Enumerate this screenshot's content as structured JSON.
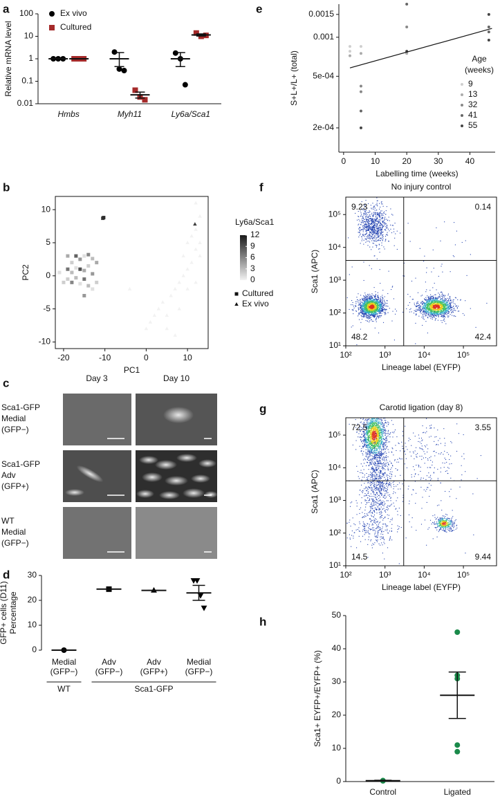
{
  "chart_data": [
    {
      "panel": "a",
      "type": "dot_strip",
      "ylabel": [
        "Relative mRNA level"
      ],
      "log_y": true,
      "ylim": [
        0.01,
        100
      ],
      "yticks": [
        0.01,
        0.1,
        1,
        10,
        100
      ],
      "categories": [
        "Hmbs",
        "Myh11",
        "Ly6a/Sca1"
      ],
      "legend": true,
      "series": [
        {
          "name": "Ex vivo",
          "color": "#000000",
          "marker": "circle",
          "values": [
            [
              1,
              1,
              1
            ],
            [
              2,
              0.35,
              0.3
            ],
            [
              1.8,
              1,
              0.07
            ]
          ],
          "mean": [
            1,
            1,
            1
          ],
          "sem": [
            [
              1,
              1
            ],
            [
              0.45,
              1.9
            ],
            [
              0.45,
              1.9
            ]
          ]
        },
        {
          "name": "Cultured",
          "color": "#a52a2a",
          "marker": "square",
          "values": [
            [
              1,
              1,
              1
            ],
            [
              0.04,
              0.02,
              0.015
            ],
            [
              14,
              10,
              11
            ]
          ],
          "mean": [
            1,
            0.025,
            11.5
          ],
          "sem": [
            [
              1,
              1
            ],
            [
              0.018,
              0.033
            ],
            [
              10.3,
              12.8
            ]
          ]
        }
      ]
    },
    {
      "panel": "b",
      "type": "scatter",
      "xlabel": "PC1",
      "ylabel": [
        "PC2"
      ],
      "xlim": [
        -22,
        15
      ],
      "xticks": [
        -20,
        -10,
        0,
        10
      ],
      "ylim": [
        -11,
        12
      ],
      "yticks": [
        -10,
        -5,
        0,
        5,
        10
      ],
      "colorbar": {
        "title": "Ly6a/Sca1",
        "lim": [
          0,
          12
        ],
        "ticks": [
          0,
          3,
          6,
          9,
          12
        ],
        "colors": [
          "#f2f2f2",
          "#1a1a1a"
        ]
      },
      "series": [
        {
          "name": "Cultured",
          "marker": "square",
          "points": [
            [
              -19,
              3,
              4
            ],
            [
              -18,
              2,
              2
            ],
            [
              -17,
              3,
              8
            ],
            [
              -16,
              2.5,
              5
            ],
            [
              -15,
              3,
              1
            ],
            [
              -14,
              3.2,
              6
            ],
            [
              -13,
              2.6,
              3
            ],
            [
              -19,
              1,
              7
            ],
            [
              -18,
              0.5,
              3
            ],
            [
              -17,
              1.2,
              1
            ],
            [
              -16,
              1,
              9
            ],
            [
              -15,
              0.8,
              4
            ],
            [
              -14,
              1.5,
              2
            ],
            [
              -13,
              0.3,
              5
            ],
            [
              -19,
              -0.5,
              2
            ],
            [
              -18,
              -1,
              6
            ],
            [
              -17,
              -0.3,
              3
            ],
            [
              -16,
              -1.2,
              1
            ],
            [
              -15,
              -0.5,
              7
            ],
            [
              -14,
              -1.5,
              3
            ],
            [
              -12,
              -1,
              2
            ],
            [
              -15,
              -3,
              5
            ],
            [
              -13,
              -2,
              1
            ],
            [
              -12,
              2,
              4
            ],
            [
              -10.5,
              8.7,
              10
            ],
            [
              -10.3,
              8.8,
              11
            ],
            [
              -21,
              0.5,
              1
            ],
            [
              -20,
              -1,
              2
            ]
          ]
        },
        {
          "name": "Ex vivo",
          "marker": "triangle",
          "points": [
            [
              0,
              -8,
              0
            ],
            [
              1,
              -7,
              0
            ],
            [
              2,
              -6,
              0
            ],
            [
              3,
              -5,
              0
            ],
            [
              4,
              -4,
              0
            ],
            [
              5,
              -6,
              0
            ],
            [
              6,
              -3,
              0
            ],
            [
              7,
              -2,
              0
            ],
            [
              8,
              -1,
              0
            ],
            [
              9,
              0,
              0
            ],
            [
              10,
              1,
              0
            ],
            [
              11,
              2,
              0
            ],
            [
              12,
              4,
              0
            ],
            [
              13,
              5,
              0
            ],
            [
              12,
              7,
              0
            ],
            [
              13,
              9,
              0
            ],
            [
              12,
              11,
              0
            ],
            [
              11.8,
              7.8,
              10
            ],
            [
              10,
              -2,
              0
            ],
            [
              8,
              -5,
              0
            ],
            [
              9,
              3,
              0
            ],
            [
              11,
              6,
              0
            ],
            [
              5,
              -8,
              0
            ],
            [
              7,
              -9,
              0
            ],
            [
              12,
              -1,
              0
            ],
            [
              10,
              5,
              0
            ],
            [
              -4,
              -2,
              0
            ],
            [
              13,
              3,
              0
            ]
          ]
        }
      ]
    },
    {
      "panel": "d",
      "type": "dot_strip",
      "ylabel": [
        "Percentage",
        "GFP+ cells (D11)"
      ],
      "ylim": [
        0,
        30
      ],
      "yticks": [
        0,
        10,
        20,
        30
      ],
      "categories": [
        [
          "Medial",
          "(GFP−)"
        ],
        [
          "Adv",
          "(GFP−)"
        ],
        [
          "Adv",
          "(GFP+)"
        ],
        [
          "Medial",
          "(GFP−)"
        ]
      ],
      "groups": [
        "WT",
        "Sca1-GFP"
      ],
      "series": [
        {
          "color": "#000000",
          "markers": [
            "circle",
            "square",
            "triangle",
            "triangle-down"
          ],
          "values": [
            [
              0
            ],
            [
              24.5
            ],
            [
              24
            ],
            [
              28,
              28,
              22,
              17
            ]
          ],
          "mean": [
            0,
            24.5,
            24,
            23
          ],
          "sem": [
            [
              0,
              0
            ],
            [
              24.5,
              24.5
            ],
            [
              24,
              24
            ],
            [
              20,
              26
            ]
          ]
        }
      ]
    },
    {
      "panel": "e",
      "type": "scatter_fit",
      "xlabel": "Labelling time (weeks)",
      "ylabel": [
        "S+L+/L+ (total)"
      ],
      "log_y": true,
      "xlim": [
        -1.5,
        48
      ],
      "xticks": [
        0,
        10,
        20,
        30,
        40
      ],
      "ylim": [
        0.00013,
        0.0018
      ],
      "yticks": [
        {
          "value": 0.0002,
          "label": "2e-04"
        },
        {
          "value": 0.0005,
          "label": "5e-04"
        },
        0.001,
        0.0015
      ],
      "legend_title": [
        "Age",
        "(weeks)"
      ],
      "series": [
        {
          "name": "9",
          "color": "#cfcfcf",
          "x": [
            2,
            2,
            5.5
          ],
          "values": [
            0.00085,
            0.00078,
            0.00085
          ]
        },
        {
          "name": "13",
          "color": "#ababab",
          "x": [
            2,
            5.5,
            20
          ],
          "values": [
            0.00072,
            0.00075,
            0.00075
          ]
        },
        {
          "name": "32",
          "color": "#888888",
          "x": [
            5.5,
            5.5,
            20
          ],
          "values": [
            0.00042,
            0.00038,
            0.0012
          ]
        },
        {
          "name": "41",
          "color": "#666666",
          "x": [
            5.5,
            20,
            46,
            46
          ],
          "values": [
            0.00027,
            0.0018,
            0.0011,
            0.0012
          ]
        },
        {
          "name": "55",
          "color": "#444444",
          "x": [
            5.5,
            46,
            46,
            20
          ],
          "values": [
            0.0002,
            0.0015,
            0.00095,
            0.00078
          ]
        }
      ],
      "fit": {
        "x": [
          2,
          47
        ],
        "values": [
          0.00058,
          0.00117
        ]
      }
    },
    {
      "panel": "f",
      "type": "flow",
      "title": "No injury control",
      "xlabel": "Lineage label (EYFP)",
      "ylabel": [
        "Sca1 (APC)"
      ],
      "log_x": true,
      "log_y": true,
      "xlim": [
        100,
        700000
      ],
      "ylim": [
        10,
        340000
      ],
      "xticks": [
        {
          "value": 100,
          "label": "10²"
        },
        {
          "value": 1000,
          "label": "10³"
        },
        {
          "value": 10000,
          "label": "10⁴"
        },
        {
          "value": 100000,
          "label": "10⁵"
        }
      ],
      "yticks": [
        {
          "value": 10,
          "label": "10¹"
        },
        {
          "value": 100,
          "label": "10²"
        },
        {
          "value": 1000,
          "label": "10³"
        },
        {
          "value": 10000,
          "label": "10⁴"
        },
        {
          "value": 100000,
          "label": "10⁵"
        }
      ],
      "gates": {
        "x": 3000,
        "y": 4000
      },
      "quadrants": [
        9.23,
        0.14,
        48.2,
        42.4
      ]
    },
    {
      "panel": "g",
      "type": "flow",
      "title": "Carotid ligation (day 8)",
      "xlabel": "Lineage label (EYFP)",
      "ylabel": [
        "Sca1 (APC)"
      ],
      "log_x": true,
      "log_y": true,
      "xlim": [
        100,
        700000
      ],
      "ylim": [
        10,
        340000
      ],
      "xticks": [
        {
          "value": 100,
          "label": "10²"
        },
        {
          "value": 1000,
          "label": "10³"
        },
        {
          "value": 10000,
          "label": "10⁴"
        },
        {
          "value": 100000,
          "label": "10⁵"
        }
      ],
      "yticks": [
        {
          "value": 10,
          "label": "10¹"
        },
        {
          "value": 100,
          "label": "10²"
        },
        {
          "value": 1000,
          "label": "10³"
        },
        {
          "value": 10000,
          "label": "10⁴"
        },
        {
          "value": 100000,
          "label": "10⁵"
        }
      ],
      "gates": {
        "x": 3000,
        "y": 4000
      },
      "quadrants": [
        72.5,
        3.55,
        14.5,
        9.44
      ]
    },
    {
      "panel": "h",
      "type": "dot_strip",
      "ylabel": [
        "Sca1+ EYFP+/EYFP+ (%)"
      ],
      "ylim": [
        0,
        50
      ],
      "yticks": [
        0,
        10,
        20,
        30,
        40,
        50
      ],
      "categories": [
        "Control",
        "Ligated"
      ],
      "series": [
        {
          "color": "#1a8a4a",
          "marker": "circle",
          "values": [
            [
              0.3,
              0.2
            ],
            [
              45,
              32,
              31,
              11,
              9
            ]
          ],
          "mean": [
            0.25,
            26
          ],
          "sem": [
            [
              0.1,
              0.4
            ],
            [
              19,
              33
            ]
          ]
        }
      ]
    }
  ],
  "image_panel": {
    "panel": "c",
    "columns": [
      "Day 3",
      "Day 10"
    ],
    "rows": [
      [
        "Sca1-GFP",
        "Medial",
        "(GFP−)"
      ],
      [
        "Sca1-GFP",
        "Adv",
        "(GFP+)"
      ],
      [
        "WT",
        "Medial",
        "(GFP−)"
      ]
    ]
  }
}
